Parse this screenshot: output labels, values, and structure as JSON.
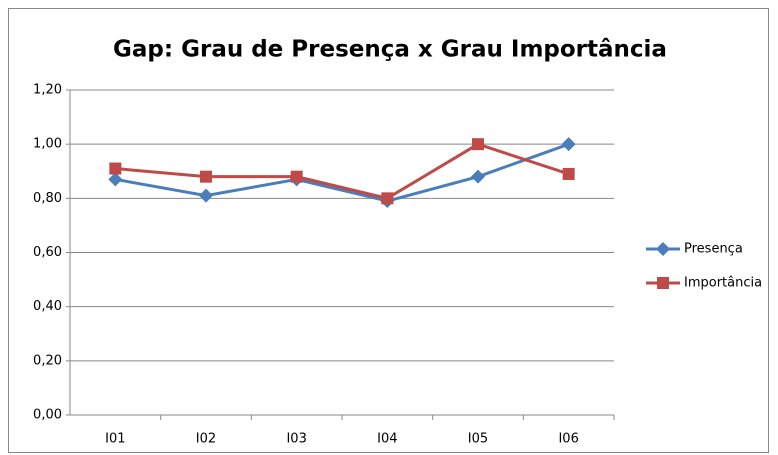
{
  "chart_data": {
    "type": "line",
    "title": "Gap: Grau de Presença x Grau Importância",
    "categories": [
      "I01",
      "I02",
      "I03",
      "I04",
      "I05",
      "I06"
    ],
    "series": [
      {
        "name": "Presença",
        "color": "#4a7ebb",
        "marker": "diamond",
        "values": [
          0.87,
          0.81,
          0.87,
          0.79,
          0.88,
          1.0
        ]
      },
      {
        "name": "Importância",
        "color": "#be4b48",
        "marker": "square",
        "values": [
          0.91,
          0.88,
          0.88,
          0.8,
          1.0,
          0.89
        ]
      }
    ],
    "ylim": [
      0,
      1.2
    ],
    "yticks": [
      {
        "value": 0,
        "label": "0,00"
      },
      {
        "value": 0.2,
        "label": "0,20"
      },
      {
        "value": 0.4,
        "label": "0,40"
      },
      {
        "value": 0.6,
        "label": "0,60"
      },
      {
        "value": 0.8,
        "label": "0,80"
      },
      {
        "value": 1.0,
        "label": "1,00"
      },
      {
        "value": 1.2,
        "label": "1,20"
      }
    ],
    "grid": true,
    "legend": "right"
  }
}
